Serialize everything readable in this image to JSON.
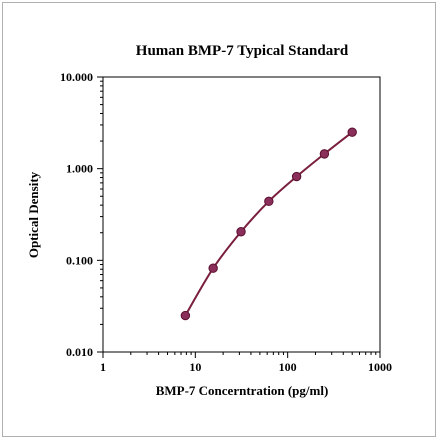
{
  "chart_data": {
    "type": "scatter",
    "title": "Human BMP-7 Typical Standard",
    "xlabel": "BMP-7 Concerntration (pg/ml)",
    "ylabel": "Optical Density",
    "x_scale": "log",
    "y_scale": "log",
    "xlim": [
      1,
      1000
    ],
    "ylim": [
      0.01,
      10
    ],
    "x_ticks": [
      "1",
      "10",
      "100",
      "1000"
    ],
    "y_ticks": [
      "10.000",
      "1.000",
      "0.100",
      "0.010"
    ],
    "grid": false,
    "legend": "none",
    "series": [
      {
        "x": [
          7.8,
          15.6,
          31.25,
          62.5,
          125,
          250,
          500
        ],
        "y": [
          0.025,
          0.082,
          0.205,
          0.44,
          0.82,
          1.45,
          2.5
        ]
      }
    ],
    "colors": {
      "line": "#7a1f3d",
      "marker": "#8a2f5a",
      "marker_edge": "#5a1030"
    }
  }
}
